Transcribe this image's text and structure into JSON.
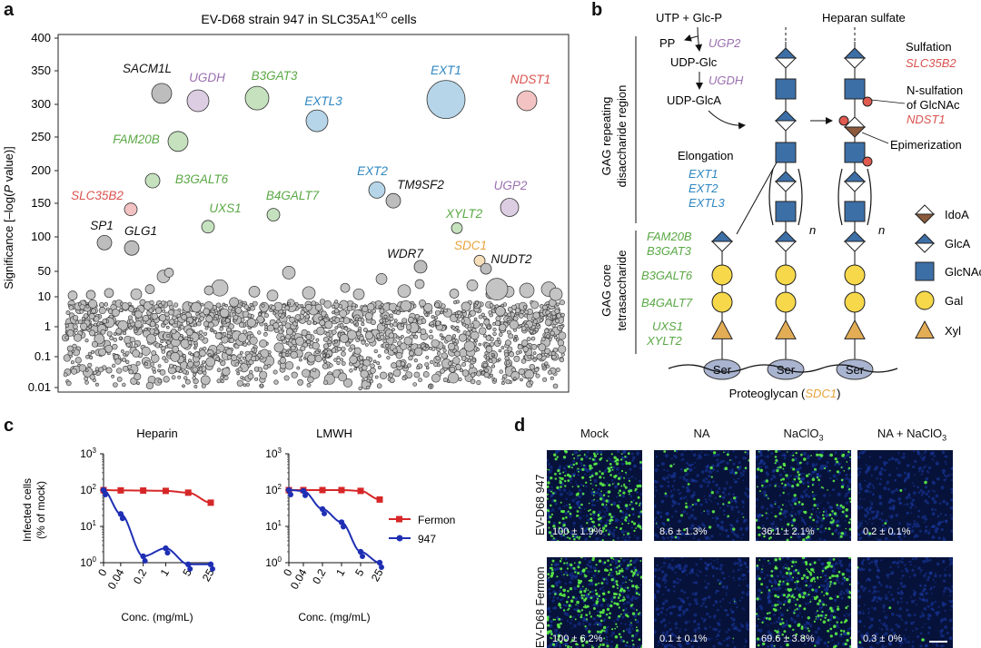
{
  "panel_letters": {
    "a": "a",
    "b": "b",
    "c": "c",
    "d": "d"
  },
  "panel_a": {
    "title_main": "EV-D68 strain 947 in SLC35A1",
    "title_sup": "KO",
    "title_tail": " cells",
    "ylabel_pre": "Significance [–log(",
    "ylabel_italic": "P",
    "ylabel_post": " value)]",
    "colors": {
      "purple": "#9a6fb0",
      "green": "#5aa845",
      "blue": "#2e86c1",
      "red": "#d9534f",
      "orange": "#e8a33b",
      "black": "#111111"
    }
  },
  "chart_data": [
    {
      "type": "scatter",
      "title": "EV-D68 strain 947 in SLC35A1KO cells",
      "xlabel": "",
      "ylabel": "Significance [–log(P value)]",
      "y_ticks": [
        "400",
        "350",
        "300",
        "250",
        "200",
        "150",
        "100",
        "50",
        "10",
        "1",
        "0.1",
        "0.01"
      ],
      "points": [
        {
          "gene": "SACM1L",
          "y": 317,
          "color": "black"
        },
        {
          "gene": "UGDH",
          "y": 306,
          "color": "purple"
        },
        {
          "gene": "B3GAT3",
          "y": 310,
          "color": "green"
        },
        {
          "gene": "EXTL3",
          "y": 276,
          "color": "blue"
        },
        {
          "gene": "EXT1",
          "y": 308,
          "color": "blue"
        },
        {
          "gene": "NDST1",
          "y": 306,
          "color": "red"
        },
        {
          "gene": "FAM20B",
          "y": 245,
          "color": "green"
        },
        {
          "gene": "B3GALT6",
          "y": 186,
          "color": "green"
        },
        {
          "gene": "SLC35B2",
          "y": 143,
          "color": "red"
        },
        {
          "gene": "UXS1",
          "y": 117,
          "color": "green"
        },
        {
          "gene": "B4GALT7",
          "y": 135,
          "color": "green"
        },
        {
          "gene": "EXT2",
          "y": 172,
          "color": "blue"
        },
        {
          "gene": "TM9SF2",
          "y": 156,
          "color": "black"
        },
        {
          "gene": "UGP2",
          "y": 146,
          "color": "purple"
        },
        {
          "gene": "XYLT2",
          "y": 115,
          "color": "green"
        },
        {
          "gene": "SP1",
          "y": 93,
          "color": "black"
        },
        {
          "gene": "GLG1",
          "y": 85,
          "color": "black"
        },
        {
          "gene": "WDR7",
          "y": 57,
          "color": "black"
        },
        {
          "gene": "SDC1",
          "y": 66,
          "color": "orange"
        },
        {
          "gene": "NUDT2",
          "y": 54,
          "color": "black"
        }
      ]
    },
    {
      "type": "line",
      "title": "Heparin",
      "xlabel": "Conc. (mg/mL)",
      "ylabel": "Infected cells (% of mock)",
      "x_ticks": [
        "0",
        "0.04",
        "0.2",
        "1",
        "5",
        "25"
      ],
      "y_ticks": [
        "10",
        "10",
        "10",
        "10"
      ],
      "y_exps": [
        "3",
        "2",
        "1",
        "0"
      ],
      "series": [
        {
          "name": "Fermon",
          "x": [
            0,
            0.04,
            0.2,
            1,
            5,
            25
          ],
          "values": [
            100,
            98,
            97,
            95,
            85,
            45
          ]
        },
        {
          "name": "947",
          "x": [
            0,
            0.04,
            0.2,
            1,
            5,
            25
          ],
          "values": [
            100,
            22,
            1.5,
            2.5,
            0.9,
            0.9
          ]
        }
      ]
    },
    {
      "type": "line",
      "title": "LMWH",
      "xlabel": "Conc. (mg/mL)",
      "ylabel": "",
      "x_ticks": [
        "0",
        "0.04",
        "0.2",
        "1",
        "5",
        "25"
      ],
      "series": [
        {
          "name": "Fermon",
          "x": [
            0,
            0.04,
            0.2,
            1,
            5,
            25
          ],
          "values": [
            100,
            100,
            100,
            100,
            95,
            55
          ]
        },
        {
          "name": "947",
          "x": [
            0,
            0.04,
            0.2,
            1,
            5,
            25
          ],
          "values": [
            100,
            95,
            30,
            13,
            2,
            1
          ]
        }
      ]
    }
  ],
  "panel_b": {
    "utp": "UTP + Glc-P",
    "pp": "PP",
    "ugp2": "UGP2",
    "udp_glc": "UDP-Glc",
    "ugdh": "UGDH",
    "udp_glca": "UDP-GlcA",
    "heparan": "Heparan sulfate",
    "sulfation": "Sulfation",
    "slc35b2": "SLC35B2",
    "nsulf1": "N-sulfation",
    "nsulf2": "of GlcNAc",
    "ndst1": "NDST1",
    "epimer": "Epimerization",
    "elongation": "Elongation",
    "ext1": "EXT1",
    "ext2": "EXT2",
    "extl3": "EXTL3",
    "gag_rep1": "GAG repeating",
    "gag_rep2": "disaccharide region",
    "gag_core1": "GAG core",
    "gag_core2": "tetrasaccharide",
    "fam20b": "FAM20B",
    "b3gat3": "B3GAT3",
    "b3galt6": "B3GALT6",
    "b4galt7": "B4GALT7",
    "uxs1": "UXS1",
    "xylt2": "XYLT2",
    "n": "n",
    "ser": "Ser",
    "proteoglycan": "Proteoglycan (",
    "sdc1": "SDC1",
    "close_paren": ")",
    "legend": [
      "IdoA",
      "GlcA",
      "GlcNAc",
      "Gal",
      "Xyl"
    ]
  },
  "panel_c": {
    "legend_fermon": "Fermon",
    "legend_947": "947",
    "colors": {
      "fermon": "#d62728",
      "s947": "#1f2fb4"
    }
  },
  "panel_d": {
    "columns": [
      "Mock",
      "NA",
      "NaClO",
      "NA + NaClO"
    ],
    "sub3": "3",
    "rows": [
      "EV-D68 947",
      "EV-D68 Fermon"
    ],
    "values": [
      [
        "100 ± 1.9%",
        "8.6 ± 1.3%",
        "36.1 ± 2.1%",
        "0.2 ± 0.1%"
      ],
      [
        "100 ± 6.2%",
        "0.1 ± 0.1%",
        "69.6 ± 3.8%",
        "0.3 ± 0%"
      ]
    ]
  }
}
